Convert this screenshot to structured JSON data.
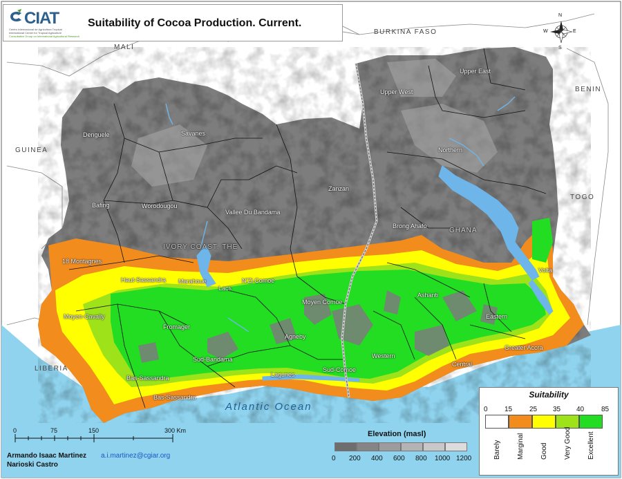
{
  "title": "Suitability of Cocoa Production. Current.",
  "logo": {
    "name": "CIAT",
    "line1": "Centro Internacional de Agricultura Tropical",
    "line2": "International Center for Tropical Agriculture",
    "line3": "Consultative Group on International Agricultural Research"
  },
  "compass": {
    "n": "N",
    "s": "S",
    "e": "E",
    "w": "W"
  },
  "countries": {
    "mali": "MALI",
    "burkina_faso": "BURKINA FASO",
    "guinea": "GUINEA",
    "benin": "BENIN",
    "togo": "TOGO",
    "liberia": "LIBERIA",
    "ghana": "GHANA",
    "ivory_coast": "IVORY COAST, THE"
  },
  "regions": {
    "denguele": "Denguele",
    "savanes": "Savanes",
    "upper_west": "Upper West",
    "upper_east": "Upper East",
    "northern": "Northern",
    "bafing": "Bafing",
    "worodougou": "Worodougou",
    "vallee_du_bandama": "Vallee Du Bandama",
    "zanzan": "Zanzan",
    "brong_ahafo": "Brong Ahafo",
    "montagnes": "18 Montagnes",
    "haut_sassandra": "Haut-Sassandra",
    "marahoue": "Marahoue",
    "lacs": "Lacs",
    "nzi_comoe": "N'Zi Comoe",
    "moyen_comoe": "Moyen Comoe",
    "ashanti": "Ashanti",
    "volta": "Volta",
    "moyen_cavally": "Moyen-Cavally",
    "fromager": "Fromager",
    "agneby": "Agneby",
    "eastern": "Eastern",
    "sud_bandama": "Sud-Bandama",
    "western": "Western",
    "greater_accra": "Greater Accra",
    "central": "Central",
    "bas_sassandra_1": "Bas-Sassandra",
    "lagunes": "Lagunes",
    "sud_comoe": "Sud-Comoe",
    "bas_sassandra_2": "Bas-Sassandra"
  },
  "ocean": "Atlantic Ocean",
  "scale": {
    "ticks": [
      "0",
      "75",
      "150",
      "300 Km"
    ]
  },
  "suitability_legend": {
    "title": "Suitability",
    "breaks": [
      "0",
      "15",
      "25",
      "35",
      "40",
      "85"
    ],
    "classes": [
      {
        "label": "Barely",
        "color": "#ffffff"
      },
      {
        "label": "Marginal",
        "color": "#f28c1c"
      },
      {
        "label": "Good",
        "color": "#ffff00"
      },
      {
        "label": "Very Good",
        "color": "#9ee21a"
      },
      {
        "label": "Excellent",
        "color": "#22dd22"
      }
    ]
  },
  "elevation_legend": {
    "title": "Elevation (masl)",
    "breaks": [
      "0",
      "200",
      "400",
      "600",
      "800",
      "1000",
      "1200"
    ],
    "colors": [
      "#6e6e6e",
      "#858585",
      "#9c9c9c",
      "#b3b3b3",
      "#c8c8c8",
      "#dcdcdc"
    ]
  },
  "credits": {
    "author1": "Armando Isaac Martinez",
    "email": "a.i.martinez@cgiar.org",
    "author2": "Narioski Castro"
  },
  "colors": {
    "ocean": "#8fd3ee",
    "land_outside": "#ffffff",
    "terrain": "#7d7d7d",
    "water": "#6eb6ea"
  }
}
